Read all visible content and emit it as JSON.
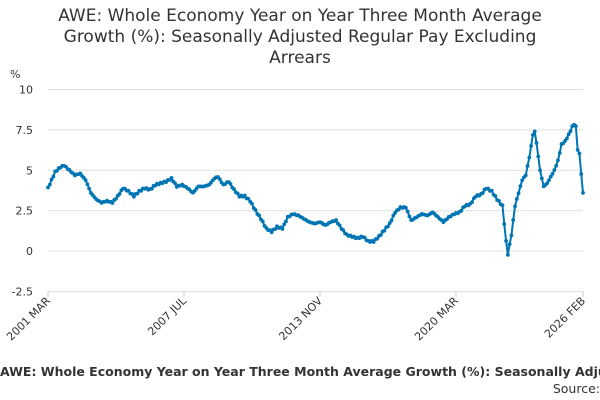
{
  "chart_data": {
    "type": "line",
    "title": "AWE: Whole Economy Year on Year Three Month Average Growth (%): Seasonally Adjusted Regular Pay Excluding Arrears",
    "ylabel": "%",
    "xlabel": "",
    "ylim": [
      -2.5,
      10
    ],
    "yticks": [
      {
        "value": 10,
        "label": "10"
      },
      {
        "value": 7.5,
        "label": "7.5"
      },
      {
        "value": 5,
        "label": "5"
      },
      {
        "value": 2.5,
        "label": "2.5"
      },
      {
        "value": 0,
        "label": "0"
      },
      {
        "value": -2.5,
        "label": "-2.5"
      }
    ],
    "xlim": [
      2001.167,
      2026.083
    ],
    "xticks": [
      {
        "value": 2001.167,
        "label": "2001 MAR"
      },
      {
        "value": 2007.5,
        "label": "2007 JUL"
      },
      {
        "value": 2013.833,
        "label": "2013 NOV"
      },
      {
        "value": 2020.167,
        "label": "2020 MAR"
      },
      {
        "value": 2026.083,
        "label": "2026 FEB"
      }
    ],
    "grid": true,
    "series_color": "#0075b3",
    "series": [
      {
        "name": "AWE: Whole Economy Year on Year Three Month Average Growth (%): Seasonally Adjusted Regular Pay Excluding Arrears",
        "keypoints": [
          [
            2001.167,
            3.9
          ],
          [
            2001.5,
            4.9
          ],
          [
            2001.75,
            5.2
          ],
          [
            2001.917,
            5.3
          ],
          [
            2002.167,
            5.0
          ],
          [
            2002.417,
            4.7
          ],
          [
            2002.667,
            4.8
          ],
          [
            2002.917,
            4.4
          ],
          [
            2003.167,
            3.6
          ],
          [
            2003.417,
            3.2
          ],
          [
            2003.667,
            3.0
          ],
          [
            2003.917,
            3.1
          ],
          [
            2004.167,
            3.0
          ],
          [
            2004.417,
            3.4
          ],
          [
            2004.667,
            3.9
          ],
          [
            2004.917,
            3.7
          ],
          [
            2005.167,
            3.4
          ],
          [
            2005.417,
            3.7
          ],
          [
            2005.667,
            3.9
          ],
          [
            2005.917,
            3.8
          ],
          [
            2006.167,
            4.1
          ],
          [
            2006.417,
            4.2
          ],
          [
            2006.667,
            4.3
          ],
          [
            2006.917,
            4.5
          ],
          [
            2007.167,
            4.0
          ],
          [
            2007.417,
            4.1
          ],
          [
            2007.667,
            3.9
          ],
          [
            2007.917,
            3.6
          ],
          [
            2008.167,
            4.0
          ],
          [
            2008.417,
            4.0
          ],
          [
            2008.667,
            4.1
          ],
          [
            2008.917,
            4.5
          ],
          [
            2009.083,
            4.6
          ],
          [
            2009.333,
            4.1
          ],
          [
            2009.583,
            4.3
          ],
          [
            2009.833,
            3.8
          ],
          [
            2010.083,
            3.4
          ],
          [
            2010.333,
            3.4
          ],
          [
            2010.583,
            3.1
          ],
          [
            2010.833,
            2.5
          ],
          [
            2011.083,
            2.0
          ],
          [
            2011.333,
            1.4
          ],
          [
            2011.583,
            1.2
          ],
          [
            2011.833,
            1.5
          ],
          [
            2012.083,
            1.4
          ],
          [
            2012.333,
            2.1
          ],
          [
            2012.583,
            2.3
          ],
          [
            2012.833,
            2.2
          ],
          [
            2013.083,
            2.0
          ],
          [
            2013.333,
            1.8
          ],
          [
            2013.583,
            1.7
          ],
          [
            2013.833,
            1.8
          ],
          [
            2014.083,
            1.6
          ],
          [
            2014.333,
            1.8
          ],
          [
            2014.583,
            1.9
          ],
          [
            2014.833,
            1.4
          ],
          [
            2015.083,
            1.0
          ],
          [
            2015.333,
            0.9
          ],
          [
            2015.583,
            0.8
          ],
          [
            2015.833,
            0.9
          ],
          [
            2016.083,
            0.6
          ],
          [
            2016.333,
            0.6
          ],
          [
            2016.583,
            0.9
          ],
          [
            2016.833,
            1.3
          ],
          [
            2017.083,
            1.7
          ],
          [
            2017.333,
            2.4
          ],
          [
            2017.583,
            2.7
          ],
          [
            2017.833,
            2.7
          ],
          [
            2018.083,
            1.9
          ],
          [
            2018.333,
            2.1
          ],
          [
            2018.583,
            2.3
          ],
          [
            2018.833,
            2.2
          ],
          [
            2019.083,
            2.4
          ],
          [
            2019.333,
            2.1
          ],
          [
            2019.583,
            1.8
          ],
          [
            2019.833,
            2.1
          ],
          [
            2020.083,
            2.3
          ],
          [
            2020.333,
            2.4
          ],
          [
            2020.583,
            2.8
          ],
          [
            2020.833,
            2.9
          ],
          [
            2021.083,
            3.4
          ],
          [
            2021.333,
            3.5
          ],
          [
            2021.583,
            3.9
          ],
          [
            2021.833,
            3.7
          ],
          [
            2022.083,
            3.2
          ],
          [
            2022.333,
            2.8
          ],
          [
            2022.5,
            0.6
          ],
          [
            2022.583,
            -0.2
          ],
          [
            2022.75,
            1.0
          ],
          [
            2022.917,
            2.8
          ],
          [
            2023.083,
            3.6
          ],
          [
            2023.25,
            4.4
          ],
          [
            2023.417,
            4.7
          ],
          [
            2023.583,
            5.8
          ],
          [
            2023.75,
            7.2
          ],
          [
            2023.833,
            7.4
          ],
          [
            2023.917,
            6.7
          ],
          [
            2024.083,
            5.0
          ],
          [
            2024.25,
            4.0
          ],
          [
            2024.417,
            4.2
          ],
          [
            2024.583,
            4.6
          ],
          [
            2024.75,
            5.0
          ],
          [
            2024.917,
            5.6
          ],
          [
            2025.083,
            6.6
          ],
          [
            2025.25,
            6.8
          ],
          [
            2025.417,
            7.2
          ],
          [
            2025.583,
            7.7
          ],
          [
            2025.667,
            7.85
          ],
          [
            2025.75,
            7.7
          ],
          [
            2025.833,
            6.3
          ],
          [
            2025.917,
            6.0
          ],
          [
            2026.0,
            4.8
          ],
          [
            2026.083,
            3.6
          ]
        ]
      }
    ]
  },
  "legend": {
    "text": "AWE: Whole Economy Year on Year Three Month Average Growth (%): Seasonally Adjusted Regular Pay Excluding Arrears"
  },
  "source": {
    "text": "Source:"
  }
}
